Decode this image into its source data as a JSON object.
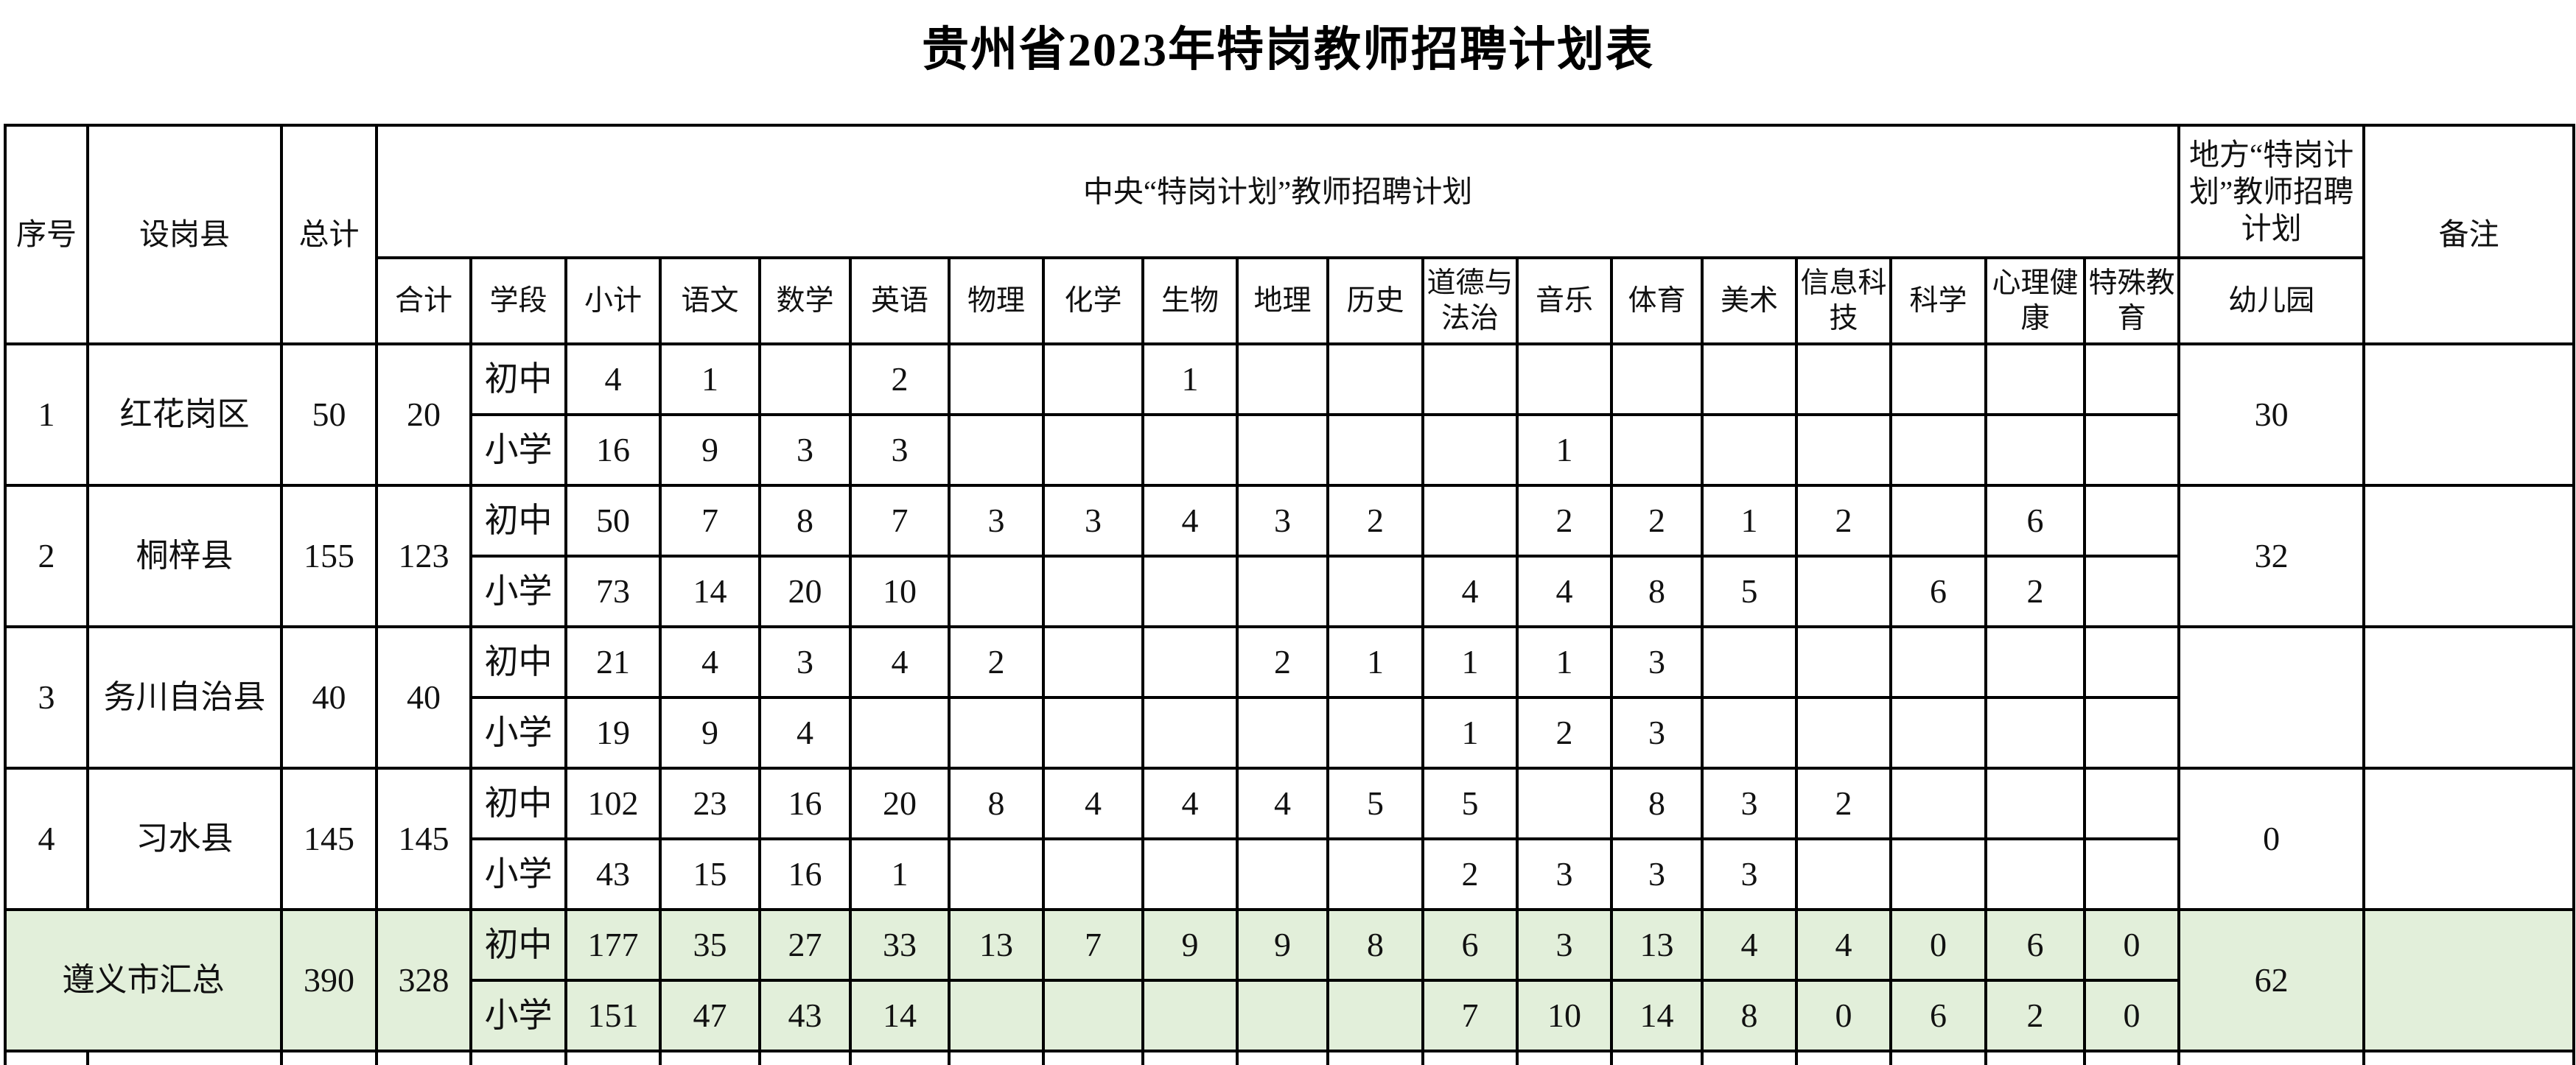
{
  "title": "贵州省2023年特岗教师招聘计划表",
  "colors": {
    "summary_background": "#e2efda",
    "border": "#000000",
    "page_background": "#ffffff"
  },
  "table": {
    "headers": {
      "xuhao": "序号",
      "shegangxian": "设岗县",
      "zongji": "总计",
      "central_plan": "中央“特岗计划”教师招聘计划",
      "local_plan": "地方“特岗计划”教师招聘计划",
      "beizhu": "备注",
      "heji": "合计",
      "xueduan": "学段",
      "xiaoji": "小计",
      "subjects": [
        "语文",
        "数学",
        "英语",
        "物理",
        "化学",
        "生物",
        "地理",
        "历史",
        "道德与法治",
        "音乐",
        "体育",
        "美术",
        "信息科技",
        "科学",
        "心理健康",
        "特殊教育"
      ],
      "youeryuan": "幼儿园"
    },
    "stage_labels": {
      "junior": "初中",
      "primary": "小学"
    },
    "rows": [
      {
        "no": "1",
        "county": "红花岗区",
        "total": "50",
        "central_total": "20",
        "junior": {
          "label": "初中",
          "subtotal": "4",
          "values": [
            "1",
            "",
            "2",
            "",
            "",
            "1",
            "",
            "",
            "",
            "",
            "",
            "",
            "",
            "",
            "",
            ""
          ]
        },
        "primary": {
          "label": "小学",
          "subtotal": "16",
          "values": [
            "9",
            "3",
            "3",
            "",
            "",
            "",
            "",
            "",
            "",
            "1",
            "",
            "",
            "",
            "",
            "",
            ""
          ]
        },
        "kindergarten": "30",
        "remark": ""
      },
      {
        "no": "2",
        "county": "桐梓县",
        "total": "155",
        "central_total": "123",
        "junior": {
          "label": "初中",
          "subtotal": "50",
          "values": [
            "7",
            "8",
            "7",
            "3",
            "3",
            "4",
            "3",
            "2",
            "",
            "2",
            "2",
            "1",
            "2",
            "",
            "6",
            ""
          ]
        },
        "primary": {
          "label": "小学",
          "subtotal": "73",
          "values": [
            "14",
            "20",
            "10",
            "",
            "",
            "",
            "",
            "",
            "4",
            "4",
            "8",
            "5",
            "",
            "6",
            "2",
            ""
          ]
        },
        "kindergarten": "32",
        "remark": ""
      },
      {
        "no": "3",
        "county": "务川自治县",
        "total": "40",
        "central_total": "40",
        "junior": {
          "label": "初中",
          "subtotal": "21",
          "values": [
            "4",
            "3",
            "4",
            "2",
            "",
            "",
            "2",
            "1",
            "1",
            "1",
            "3",
            "",
            "",
            "",
            "",
            ""
          ]
        },
        "primary": {
          "label": "小学",
          "subtotal": "19",
          "values": [
            "9",
            "4",
            "",
            "",
            "",
            "",
            "",
            "",
            "1",
            "2",
            "3",
            "",
            "",
            "",
            "",
            ""
          ]
        },
        "kindergarten": "",
        "remark": ""
      },
      {
        "no": "4",
        "county": "习水县",
        "total": "145",
        "central_total": "145",
        "junior": {
          "label": "初中",
          "subtotal": "102",
          "values": [
            "23",
            "16",
            "20",
            "8",
            "4",
            "4",
            "4",
            "5",
            "5",
            "",
            "8",
            "3",
            "2",
            "",
            "",
            ""
          ]
        },
        "primary": {
          "label": "小学",
          "subtotal": "43",
          "values": [
            "15",
            "16",
            "1",
            "",
            "",
            "",
            "",
            "",
            "2",
            "3",
            "3",
            "3",
            "",
            "",
            "",
            ""
          ]
        },
        "kindergarten": "0",
        "remark": ""
      }
    ],
    "summary": {
      "label": "遵义市汇总",
      "total": "390",
      "central_total": "328",
      "junior": {
        "label": "初中",
        "subtotal": "177",
        "values": [
          "35",
          "27",
          "33",
          "13",
          "7",
          "9",
          "9",
          "8",
          "6",
          "3",
          "13",
          "4",
          "4",
          "0",
          "6",
          "0"
        ]
      },
      "primary": {
        "label": "小学",
        "subtotal": "151",
        "values": [
          "47",
          "43",
          "14",
          "",
          "",
          "",
          "",
          "",
          "7",
          "10",
          "14",
          "8",
          "0",
          "6",
          "2",
          "0"
        ]
      },
      "kindergarten": "62",
      "remark": ""
    }
  }
}
